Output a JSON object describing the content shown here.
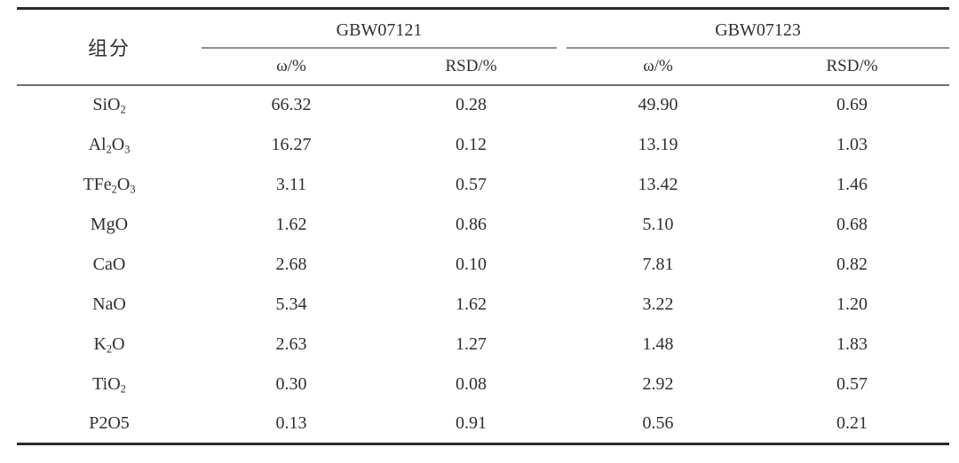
{
  "colors": {
    "rule_dark": "#2a2a2e",
    "rule_mid": "#6e6e72",
    "rule_light": "#8f8f93",
    "text": "#2f2f33",
    "page_bg": "#ffffff"
  },
  "chart_data": {
    "type": "table",
    "component_column_header": "组分",
    "column_groups": [
      {
        "label": "GBW07121",
        "subcolumns": [
          "ω/%",
          "RSD/%"
        ]
      },
      {
        "label": "GBW07123",
        "subcolumns": [
          "ω/%",
          "RSD/%"
        ]
      }
    ],
    "rows": [
      {
        "component": [
          {
            "text": "SiO"
          },
          {
            "text": "2",
            "sub": true
          }
        ],
        "values": [
          "66.32",
          "0.28",
          "49.90",
          "0.69"
        ]
      },
      {
        "component": [
          {
            "text": "Al"
          },
          {
            "text": "2",
            "sub": true
          },
          {
            "text": "O"
          },
          {
            "text": "3",
            "sub": true
          }
        ],
        "values": [
          "16.27",
          "0.12",
          "13.19",
          "1.03"
        ]
      },
      {
        "component": [
          {
            "text": "TFe"
          },
          {
            "text": "2",
            "sub": true
          },
          {
            "text": "O"
          },
          {
            "text": "3",
            "sub": true
          }
        ],
        "values": [
          "3.11",
          "0.57",
          "13.42",
          "1.46"
        ]
      },
      {
        "component": [
          {
            "text": "MgO"
          }
        ],
        "values": [
          "1.62",
          "0.86",
          "5.10",
          "0.68"
        ]
      },
      {
        "component": [
          {
            "text": "CaO"
          }
        ],
        "values": [
          "2.68",
          "0.10",
          "7.81",
          "0.82"
        ]
      },
      {
        "component": [
          {
            "text": "NaO"
          }
        ],
        "values": [
          "5.34",
          "1.62",
          "3.22",
          "1.20"
        ]
      },
      {
        "component": [
          {
            "text": "K"
          },
          {
            "text": "2",
            "sub": true
          },
          {
            "text": "O"
          }
        ],
        "values": [
          "2.63",
          "1.27",
          "1.48",
          "1.83"
        ]
      },
      {
        "component": [
          {
            "text": "TiO"
          },
          {
            "text": "2",
            "sub": true
          }
        ],
        "values": [
          "0.30",
          "0.08",
          "2.92",
          "0.57"
        ]
      },
      {
        "component": [
          {
            "text": "P2O5"
          }
        ],
        "values": [
          "0.13",
          "0.91",
          "0.56",
          "0.21"
        ]
      }
    ]
  }
}
